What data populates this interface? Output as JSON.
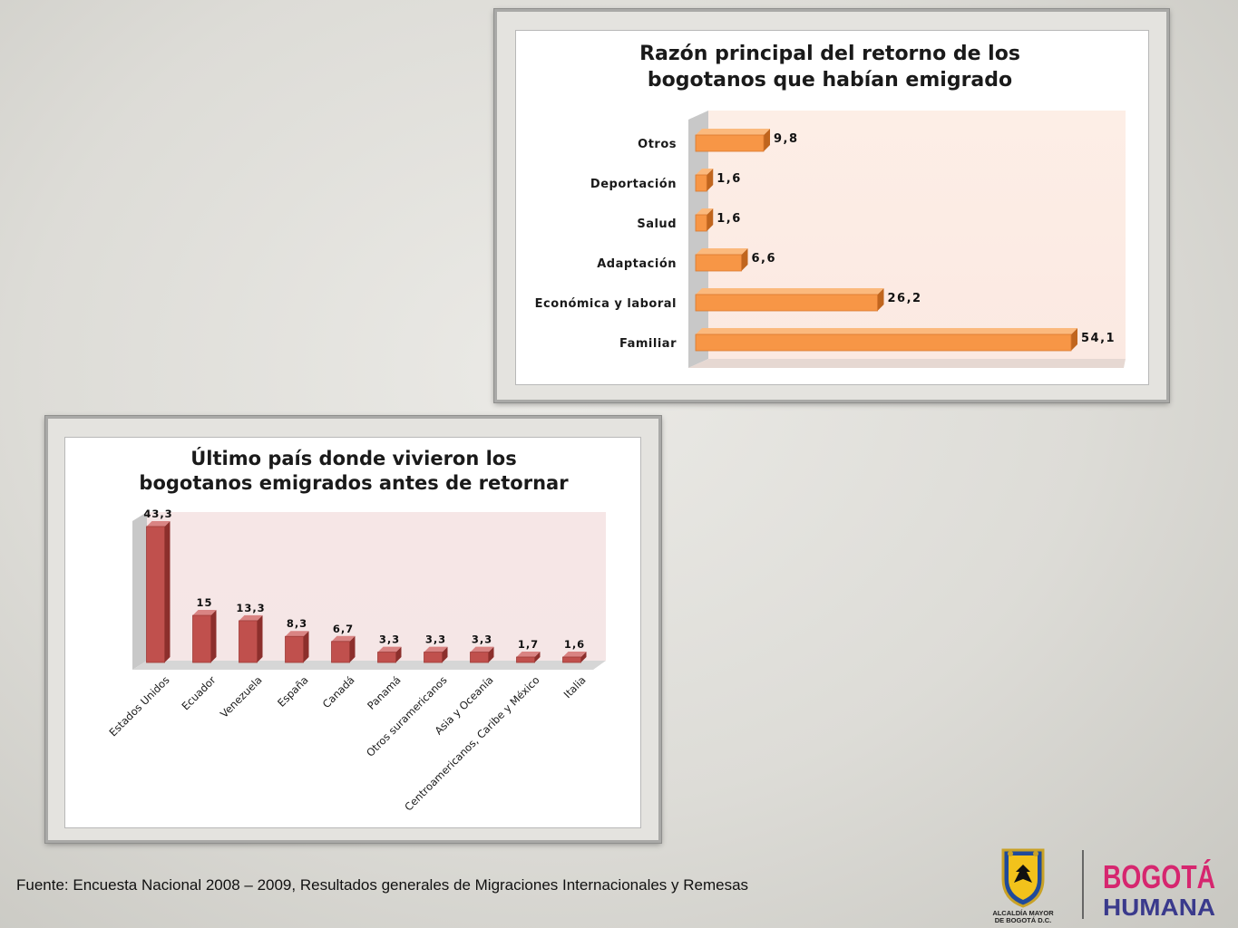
{
  "colors": {
    "orange": "#f79646",
    "orange_side": "#c0651e",
    "orange_top": "#fbb97d",
    "red": "#c0504d",
    "red_side": "#8c2f2c",
    "red_top": "#d98483",
    "plot_bg_top": "#fdeee6",
    "plot_bg_bottom": "#f5e6e6",
    "wall": "#c8c8c8"
  },
  "chart_data": [
    {
      "type": "bar",
      "orientation": "horizontal",
      "title_lines": [
        "Razón principal del retorno de los",
        "bogotanos que habían emigrado"
      ],
      "categories": [
        "Otros",
        "Deportación",
        "Salud",
        "Adaptación",
        "Económica y laboral",
        "Familiar"
      ],
      "values": [
        9.8,
        1.6,
        1.6,
        6.6,
        26.2,
        54.1
      ],
      "labels": [
        "9,8",
        "1,6",
        "1,6",
        "6,6",
        "26,2",
        "54,1"
      ],
      "xlim": [
        0,
        54.1
      ],
      "grid": false,
      "legend": "none"
    },
    {
      "type": "bar",
      "orientation": "vertical",
      "title_lines": [
        "Último país donde vivieron los",
        "bogotanos emigrados antes de retornar"
      ],
      "categories": [
        "Estados Unidos",
        "Ecuador",
        "Venezuela",
        "España",
        "Canadá",
        "Panamá",
        "Otros suramericanos",
        "Asia y Oceanía",
        "Centroamericanos, Caribe y México",
        "Italia"
      ],
      "values": [
        43.3,
        15,
        13.3,
        8.3,
        6.7,
        3.3,
        3.3,
        3.3,
        1.7,
        1.6
      ],
      "labels": [
        "43,3",
        "15",
        "13,3",
        "8,3",
        "6,7",
        "3,3",
        "3,3",
        "3,3",
        "1,7",
        "1,6"
      ],
      "ylim": [
        0,
        43.3
      ],
      "grid": false,
      "legend": "none"
    }
  ],
  "footer": {
    "source": "Fuente: Encuesta Nacional 2008 – 2009, Resultados generales de Migraciones Internacionales y Remesas"
  },
  "logos": {
    "alcaldia_line1": "ALCALDÍA MAYOR",
    "alcaldia_line2": "DE BOGOTÁ D.C.",
    "bogota": "BOGOTÁ",
    "humana": "HUMANA"
  }
}
